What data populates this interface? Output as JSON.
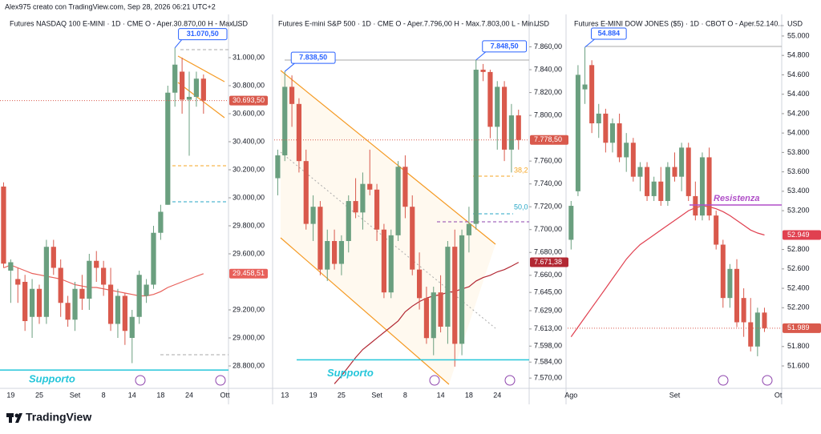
{
  "header": {
    "text": "Alex975 creato con TradingView.com, Sep 28, 2026 06:21 UTC+2"
  },
  "footer": {
    "brand": "TradingView"
  },
  "chart_data": [
    {
      "type": "candlestick",
      "title": "Futures NASDAQ 100 E-MINI · 1D · CME  O - Aper.30.870,00  H - Max....",
      "axis_label": "USD",
      "categories": [
        null,
        "19",
        null,
        null,
        null,
        "25",
        null,
        null,
        null,
        null,
        "Set",
        null,
        null,
        null,
        "8",
        null,
        null,
        null,
        "14",
        null,
        null,
        null,
        "18",
        null,
        null,
        null,
        "24",
        null,
        null,
        null,
        null,
        "Ott"
      ],
      "open": [
        30080,
        29480,
        29420,
        29400,
        29150,
        29350,
        29150,
        29650,
        29500,
        29250,
        29130,
        29350,
        29280,
        29550,
        29500,
        29380,
        29100,
        29300,
        29000,
        29150,
        29300,
        29380,
        29750,
        29950,
        30750,
        30900,
        30700,
        30720,
        30850,
        null,
        null,
        null
      ],
      "high": [
        30110,
        29560,
        29500,
        29450,
        29420,
        29380,
        29700,
        29700,
        29560,
        29300,
        29400,
        29450,
        29600,
        29620,
        29550,
        29500,
        29350,
        29320,
        29200,
        29480,
        29420,
        29800,
        29950,
        30800,
        31070.5,
        31000,
        30900,
        30900,
        30880,
        null,
        null,
        null
      ],
      "low": [
        29500,
        29250,
        29250,
        29050,
        29000,
        29100,
        29100,
        29450,
        29150,
        29080,
        29050,
        29200,
        29200,
        29400,
        29300,
        29050,
        29000,
        28950,
        28820,
        29100,
        29250,
        29350,
        29700,
        29950,
        30650,
        30600,
        30300,
        30650,
        30600,
        null,
        null,
        null
      ],
      "close": [
        29530,
        29540,
        29380,
        29120,
        29350,
        29150,
        29650,
        29500,
        29250,
        29130,
        29350,
        29280,
        29550,
        29500,
        29380,
        29100,
        29300,
        29050,
        29150,
        29450,
        29380,
        29750,
        29900,
        30750,
        30950,
        30700,
        30720,
        30850,
        30693.5,
        null,
        null,
        null
      ],
      "ma": [
        29500,
        29520,
        29500,
        29480,
        29460,
        29450,
        29440,
        29430,
        29420,
        29400,
        29380,
        29370,
        29360,
        29360,
        29350,
        29340,
        29330,
        29320,
        29310,
        29300,
        29300,
        29310,
        29330,
        29360,
        29380,
        29400,
        29420,
        29440,
        29458.51,
        null,
        null,
        null
      ],
      "ylim": [
        28640,
        31297
      ],
      "yticks": [
        {
          "value": 31000,
          "label": "31.000,00"
        },
        {
          "value": 30800,
          "label": "30.800,00"
        },
        {
          "value": 30600,
          "label": "30.600,00"
        },
        {
          "value": 30400,
          "label": "30.400,00"
        },
        {
          "value": 30200,
          "label": "30.200,00"
        },
        {
          "value": 30000,
          "label": "30.000,00"
        },
        {
          "value": 29800,
          "label": "29.800,00"
        },
        {
          "value": 29600,
          "label": "29.600,00"
        },
        {
          "value": 29200,
          "label": "29.200,00"
        },
        {
          "value": 29000,
          "label": "29.000,00"
        },
        {
          "value": 28800,
          "label": "28.800,00"
        }
      ],
      "up_color": "#6a9f7f",
      "down_color": "#d9594c",
      "ma_color": "#e8605a",
      "last_price": {
        "value": 30693.5,
        "label": "30.693,50"
      },
      "ma_label": {
        "value": 29458.51,
        "label": "29.458,51"
      },
      "callouts": [
        {
          "value": 31070.5,
          "label": "31.070,50"
        }
      ],
      "annotations": [
        {
          "label": "Supporto",
          "value": 28771,
          "color": "#26c6da"
        }
      ]
    },
    {
      "type": "candlestick",
      "title": "Futures E-mini S&P 500 · 1D · CME  O - Aper.7.796,00  H - Max.7.803,00  L - Min....",
      "axis_label": "USD",
      "categories": [
        null,
        "13",
        null,
        null,
        null,
        "19",
        null,
        null,
        null,
        "25",
        null,
        null,
        null,
        null,
        "Set",
        null,
        null,
        null,
        "8",
        null,
        null,
        null,
        null,
        "14",
        null,
        null,
        null,
        "18",
        null,
        null,
        null,
        "24",
        null,
        null,
        null,
        null
      ],
      "open": [
        7745,
        7765,
        7825,
        7810,
        7760,
        7705,
        7720,
        7665,
        7690,
        7670,
        7690,
        7725,
        7715,
        7740,
        7735,
        7700,
        7645,
        7695,
        7755,
        7720,
        7665,
        7640,
        7605,
        7645,
        7615,
        7685,
        7600,
        7695,
        7705,
        7840,
        7838,
        7790,
        7825,
        7770,
        7800,
        null
      ],
      "high": [
        7770,
        7838.5,
        7835,
        7815,
        7770,
        7730,
        7725,
        7700,
        7700,
        7695,
        7730,
        7745,
        7750,
        7770,
        7740,
        7705,
        7700,
        7760,
        7765,
        7730,
        7680,
        7650,
        7650,
        7660,
        7690,
        7700,
        7700,
        7720,
        7848.5,
        7845,
        7840,
        7830,
        7830,
        7810,
        7805,
        null
      ],
      "low": [
        7730,
        7760,
        7790,
        7750,
        7700,
        7690,
        7660,
        7655,
        7665,
        7660,
        7680,
        7710,
        7700,
        7730,
        7690,
        7640,
        7640,
        7690,
        7710,
        7660,
        7630,
        7600,
        7590,
        7610,
        7600,
        7580,
        7590,
        7680,
        7700,
        7830,
        7780,
        7770,
        7760,
        7750,
        7770,
        null
      ],
      "close": [
        7765,
        7825,
        7810,
        7760,
        7705,
        7720,
        7665,
        7690,
        7670,
        7690,
        7725,
        7715,
        7740,
        7735,
        7700,
        7645,
        7695,
        7755,
        7720,
        7665,
        7640,
        7605,
        7645,
        7615,
        7685,
        7600,
        7695,
        7705,
        7840,
        7838,
        7790,
        7825,
        7770,
        7800,
        7778.5,
        null
      ],
      "ma": [
        null,
        null,
        null,
        null,
        null,
        null,
        null,
        null,
        7565,
        7572,
        7580,
        7588,
        7595,
        7600,
        7605,
        7610,
        7615,
        7620,
        7628,
        7633,
        7637,
        7640,
        7642,
        7643,
        7645,
        7646,
        7648,
        7650,
        7655,
        7658,
        7660,
        7663,
        7665,
        7668,
        7671.38,
        null
      ],
      "ylim": [
        7561,
        7887
      ],
      "yticks": [
        {
          "value": 7860,
          "label": "7.860,00"
        },
        {
          "value": 7840,
          "label": "7.840,00"
        },
        {
          "value": 7820,
          "label": "7.820,00"
        },
        {
          "value": 7800,
          "label": "7.800,00"
        },
        {
          "value": 7760,
          "label": "7.760,00"
        },
        {
          "value": 7740,
          "label": "7.740,00"
        },
        {
          "value": 7720,
          "label": "7.720,00"
        },
        {
          "value": 7700,
          "label": "7.700,00"
        },
        {
          "value": 7680,
          "label": "7.680,00"
        },
        {
          "value": 7660,
          "label": "7.660,00"
        },
        {
          "value": 7645,
          "label": "7.645,00"
        },
        {
          "value": 7629,
          "label": "7.629,00"
        },
        {
          "value": 7613,
          "label": "7.613,00"
        },
        {
          "value": 7598,
          "label": "7.598,00"
        },
        {
          "value": 7584,
          "label": "7.584,00"
        },
        {
          "value": 7570,
          "label": "7.570,00"
        }
      ],
      "up_color": "#6a9f7f",
      "down_color": "#d9594c",
      "ma_color": "#b22833",
      "last_price": {
        "value": 7778.5,
        "label": "7.778,50"
      },
      "ma_label": {
        "value": 7671.38,
        "label": "7.671,38"
      },
      "callouts": [
        {
          "value": 7838.5,
          "label": "7.838,50"
        },
        {
          "value": 7848.5,
          "label": "7.848,50"
        }
      ],
      "annotations": [
        {
          "label": "Supporto",
          "value": 7586,
          "color": "#26c6da"
        }
      ],
      "fib_labels": [
        "38,2",
        "50,0"
      ]
    },
    {
      "type": "candlestick",
      "title": "Futures E-MINI DOW JONES ($5) · 1D · CBOT  O - Aper.52.140...",
      "axis_label": "USD",
      "categories": [
        "Ago",
        null,
        null,
        null,
        null,
        null,
        null,
        null,
        null,
        null,
        null,
        null,
        null,
        null,
        null,
        "Set",
        null,
        null,
        null,
        null,
        null,
        null,
        null,
        null,
        null,
        null,
        null,
        null,
        null,
        null,
        "Ot"
      ],
      "open": [
        52900,
        53400,
        54450,
        54700,
        54100,
        54200,
        53900,
        54100,
        53750,
        53900,
        53550,
        53650,
        53350,
        53500,
        53300,
        53650,
        53550,
        53850,
        53350,
        53150,
        53750,
        53150,
        52850,
        52300,
        52600,
        52300,
        52050,
        51800,
        52150,
        null,
        null
      ],
      "high": [
        53300,
        54700,
        54884,
        54750,
        54300,
        54250,
        54150,
        54200,
        54000,
        53950,
        53700,
        53700,
        53550,
        53650,
        53700,
        53800,
        53900,
        53900,
        53500,
        53800,
        53850,
        53200,
        52900,
        52650,
        52700,
        52400,
        52300,
        52200,
        52200,
        null,
        null
      ],
      "low": [
        52800,
        53350,
        54300,
        54000,
        53950,
        53800,
        53800,
        53700,
        53600,
        53500,
        53400,
        53300,
        53300,
        53250,
        53250,
        53500,
        53400,
        53300,
        53100,
        53100,
        53100,
        52800,
        52200,
        52200,
        52000,
        51900,
        51750,
        51700,
        51950,
        null,
        null
      ],
      "close": [
        53250,
        54600,
        54500,
        54100,
        54200,
        53900,
        54100,
        53750,
        53900,
        53550,
        53650,
        53350,
        53500,
        53300,
        53650,
        53550,
        53850,
        53350,
        53150,
        53750,
        53150,
        52850,
        52300,
        52600,
        52050,
        52050,
        51800,
        52150,
        51989,
        null,
        null
      ],
      "ma": [
        51900,
        52000,
        52100,
        52200,
        52300,
        52400,
        52500,
        52600,
        52700,
        52780,
        52850,
        52900,
        52950,
        53000,
        53050,
        53100,
        53150,
        53200,
        53230,
        53250,
        53240,
        53220,
        53190,
        53150,
        53100,
        53050,
        53000,
        52970,
        52949,
        null,
        null
      ],
      "ylim": [
        51369,
        55206
      ],
      "yticks": [
        {
          "value": 55000,
          "label": "55.000"
        },
        {
          "value": 54800,
          "label": "54.800"
        },
        {
          "value": 54600,
          "label": "54.600"
        },
        {
          "value": 54400,
          "label": "54.400"
        },
        {
          "value": 54200,
          "label": "54.200"
        },
        {
          "value": 54000,
          "label": "54.000"
        },
        {
          "value": 53800,
          "label": "53.800"
        },
        {
          "value": 53600,
          "label": "53.600"
        },
        {
          "value": 53400,
          "label": "53.400"
        },
        {
          "value": 53200,
          "label": "53.200"
        },
        {
          "value": 52800,
          "label": "52.800"
        },
        {
          "value": 52600,
          "label": "52.600"
        },
        {
          "value": 52400,
          "label": "52.400"
        },
        {
          "value": 52200,
          "label": "52.200"
        },
        {
          "value": 51800,
          "label": "51.800"
        },
        {
          "value": 51600,
          "label": "51.600"
        }
      ],
      "up_color": "#6a9f7f",
      "down_color": "#d9594c",
      "ma_color": "#e04050",
      "last_price": {
        "value": 51989,
        "label": "51.989"
      },
      "ma_label": {
        "value": 52949,
        "label": "52.949"
      },
      "callouts": [
        {
          "value": 54884,
          "label": "54.884"
        }
      ],
      "annotations": [
        {
          "label": "Resistenza",
          "value": 53259,
          "color": "#b04fc8"
        }
      ]
    }
  ]
}
